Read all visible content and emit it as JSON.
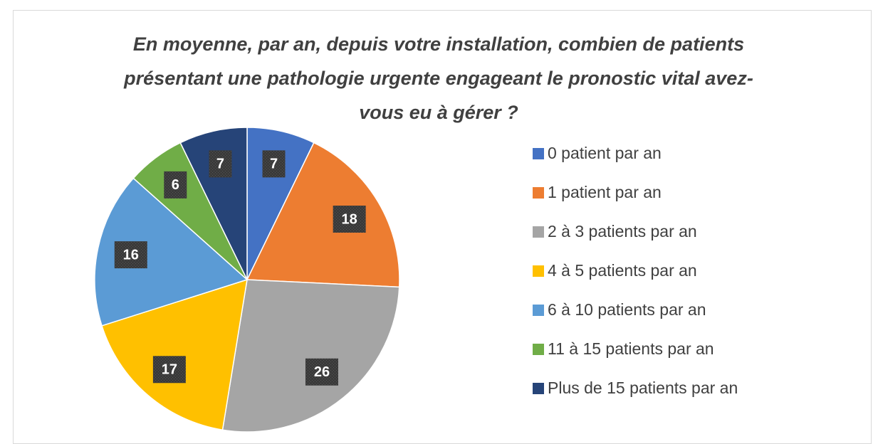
{
  "chart_data": {
    "type": "pie",
    "title": "En moyenne, par an, depuis votre installation, combien de patients présentant une pathologie urgente engageant le pronostic vital avez-vous eu à gérer ?",
    "categories": [
      "0 patient par an",
      "1 patient par an",
      "2 à 3 patients par an",
      "4 à 5 patients par an",
      "6 à 10 patients par an",
      "11 à 15 patients par an",
      "Plus de 15 patients par an"
    ],
    "values": [
      7,
      18,
      26,
      17,
      16,
      6,
      7
    ],
    "colors": [
      "#4472c4",
      "#ed7d31",
      "#a5a5a5",
      "#ffc000",
      "#5b9bd5",
      "#70ad47",
      "#264478"
    ],
    "legend": "right"
  }
}
